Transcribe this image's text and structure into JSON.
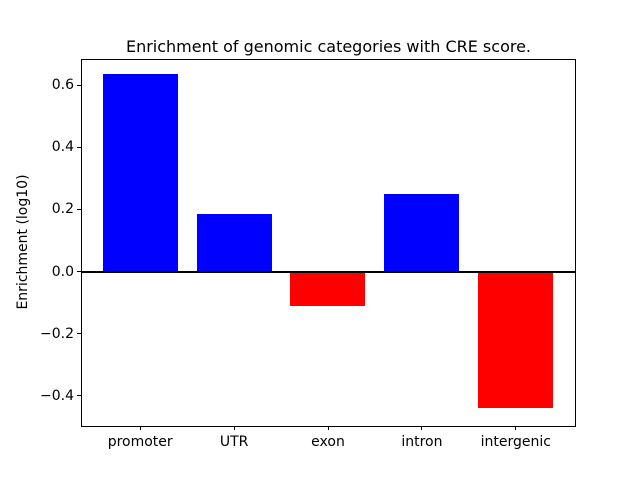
{
  "figure": {
    "background": "#ffffff",
    "frame_color": "#000000"
  },
  "chart_data": {
    "type": "bar",
    "title": "Enrichment of genomic categories with CRE score.",
    "xlabel": "",
    "ylabel": "Enrichment (log10)",
    "categories": [
      "promoter",
      "UTR",
      "exon",
      "intron",
      "intergenic"
    ],
    "values": [
      0.635,
      0.185,
      -0.11,
      0.25,
      -0.44
    ],
    "bar_colors": [
      "#0000ff",
      "#0000ff",
      "#ff0000",
      "#0000ff",
      "#ff0000"
    ],
    "positive_color": "#0000ff",
    "negative_color": "#ff0000",
    "bar_width": 0.8,
    "ylim": [
      -0.494,
      0.684
    ],
    "xlim": [
      -0.63,
      4.63
    ],
    "yticks": [
      -0.4,
      -0.2,
      0.0,
      0.2,
      0.4,
      0.6
    ],
    "ytick_labels": [
      "−0.4",
      "−0.2",
      "0.0",
      "0.2",
      "0.4",
      "0.6"
    ],
    "zero_line": true,
    "grid": false,
    "legend": false
  }
}
